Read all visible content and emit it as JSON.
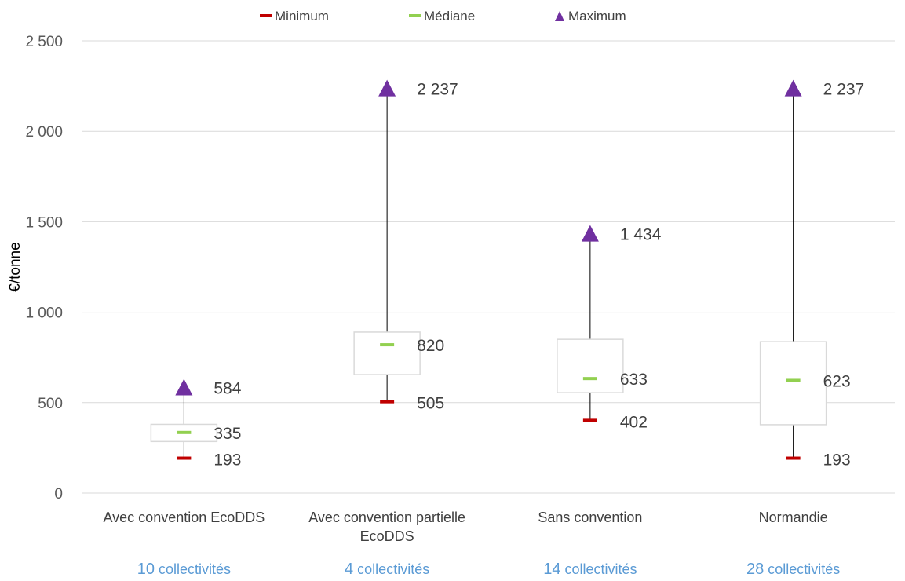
{
  "chart_data": {
    "type": "box",
    "ylabel": "€/tonne",
    "ylim": [
      0,
      2500
    ],
    "yticks": [
      {
        "value": 0,
        "label": "0"
      },
      {
        "value": 500,
        "label": "500"
      },
      {
        "value": 1000,
        "label": "1 000"
      },
      {
        "value": 1500,
        "label": "1 500"
      },
      {
        "value": 2000,
        "label": "2 000"
      },
      {
        "value": 2500,
        "label": "2 500"
      }
    ],
    "grid": true,
    "legend_position": "top",
    "legend": [
      {
        "name": "Minimum",
        "marker": "dash",
        "color": "#c00000"
      },
      {
        "name": "Médiane",
        "marker": "dash",
        "color": "#92d050"
      },
      {
        "name": "Maximum",
        "marker": "triangle",
        "color": "#7030a0"
      }
    ],
    "categories": [
      {
        "label_lines": [
          "Avec convention EcoDDS"
        ],
        "count": "10",
        "count_text": "collectivités",
        "min": 193,
        "q1": 285,
        "median": 335,
        "q3": 380,
        "max": 584,
        "min_label": "193",
        "median_label": "335",
        "max_label": "584"
      },
      {
        "label_lines": [
          "Avec convention partielle",
          "EcoDDS"
        ],
        "count": "4",
        "count_text": "collectivités",
        "min": 505,
        "q1": 655,
        "median": 820,
        "q3": 890,
        "max": 2237,
        "min_label": "505",
        "median_label": "820",
        "max_label": "2 237"
      },
      {
        "label_lines": [
          "Sans convention"
        ],
        "count": "14",
        "count_text": "collectivités",
        "min": 402,
        "q1": 555,
        "median": 633,
        "q3": 850,
        "max": 1434,
        "min_label": "402",
        "median_label": "633",
        "max_label": "1 434"
      },
      {
        "label_lines": [
          "Normandie"
        ],
        "count": "28",
        "count_text": "collectivités",
        "min": 193,
        "q1": 378,
        "median": 623,
        "q3": 837,
        "max": 2237,
        "min_label": "193",
        "median_label": "623",
        "max_label": "2 237"
      }
    ],
    "colors": {
      "whisker": "#000000",
      "box_border": "#d9d9d9",
      "grid": "#d9d9d9",
      "note": "#5b9bd5"
    }
  }
}
